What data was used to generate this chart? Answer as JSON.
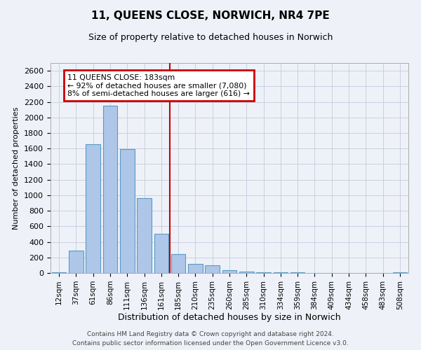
{
  "title": "11, QUEENS CLOSE, NORWICH, NR4 7PE",
  "subtitle": "Size of property relative to detached houses in Norwich",
  "xlabel": "Distribution of detached houses by size in Norwich",
  "ylabel": "Number of detached properties",
  "categories": [
    "12sqm",
    "37sqm",
    "61sqm",
    "86sqm",
    "111sqm",
    "136sqm",
    "161sqm",
    "185sqm",
    "210sqm",
    "235sqm",
    "260sqm",
    "285sqm",
    "310sqm",
    "334sqm",
    "359sqm",
    "384sqm",
    "409sqm",
    "434sqm",
    "458sqm",
    "483sqm",
    "508sqm"
  ],
  "values": [
    5,
    285,
    1660,
    2150,
    1590,
    960,
    500,
    240,
    120,
    100,
    40,
    20,
    10,
    5,
    5,
    3,
    3,
    2,
    1,
    1,
    5
  ],
  "bar_color": "#aec6e8",
  "bar_edge_color": "#5a9ac5",
  "vline_x_idx": 7,
  "vline_label": "11 QUEENS CLOSE: 183sqm",
  "annotation_line1": "← 92% of detached houses are smaller (7,080)",
  "annotation_line2": "8% of semi-detached houses are larger (616) →",
  "annotation_border_color": "#cc0000",
  "footer1": "Contains HM Land Registry data © Crown copyright and database right 2024.",
  "footer2": "Contains public sector information licensed under the Open Government Licence v3.0.",
  "ylim": [
    0,
    2700
  ],
  "yticks": [
    0,
    200,
    400,
    600,
    800,
    1000,
    1200,
    1400,
    1600,
    1800,
    2000,
    2200,
    2400,
    2600
  ],
  "background_color": "#eef2f8",
  "grid_color": "#c8cfe0"
}
